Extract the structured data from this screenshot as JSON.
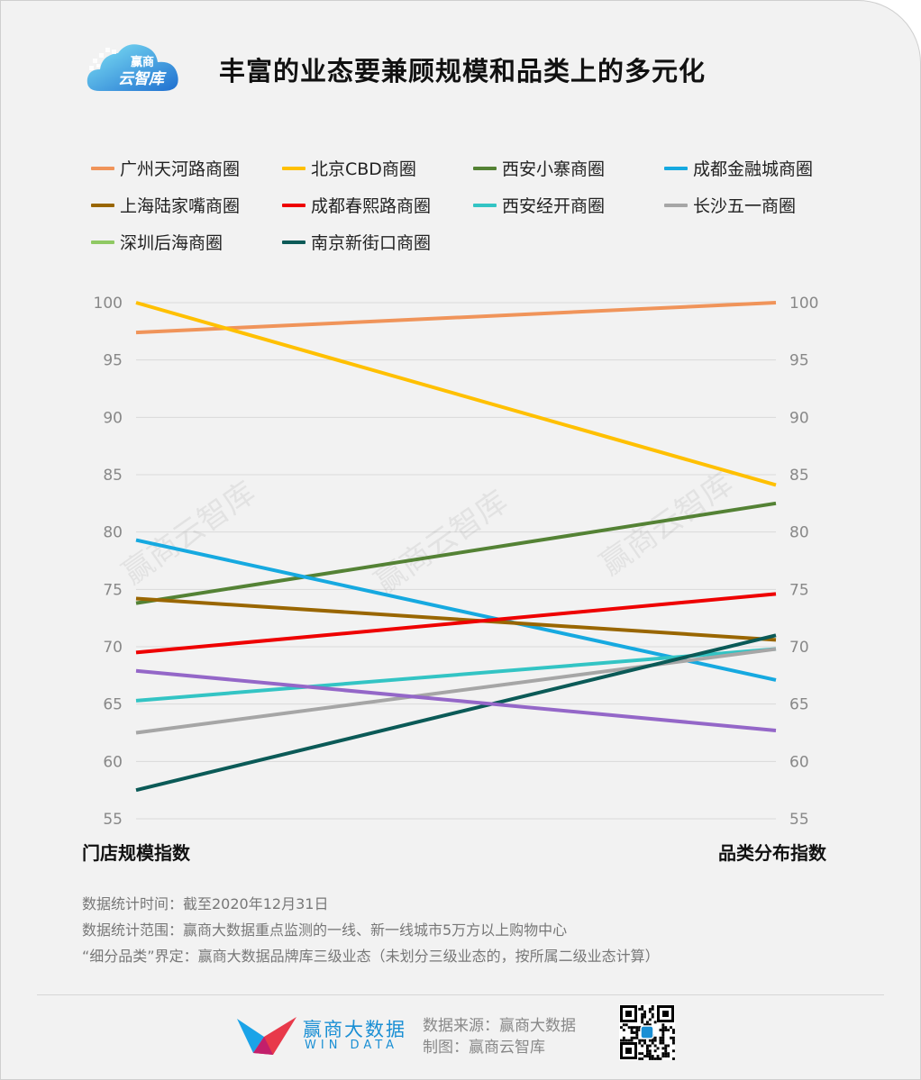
{
  "title": "丰富的业态要兼顾规模和品类上的多元化",
  "logo": {
    "line1": "赢商",
    "line2": "云智库"
  },
  "watermark": "赢商云智库",
  "chart_data": {
    "type": "line",
    "title": "丰富的业态要兼顾规模和品类上的多元化",
    "categories": [
      "门店规模指数",
      "品类分布指数"
    ],
    "ylim": [
      55,
      100
    ],
    "yticks": [
      100,
      95,
      90,
      85,
      80,
      75,
      70,
      65,
      60,
      55
    ],
    "grid": true,
    "legend_position": "top",
    "series": [
      {
        "name": "广州天河路商圈",
        "color": "#f0945a",
        "values": [
          97.4,
          100
        ]
      },
      {
        "name": "北京CBD商圈",
        "color": "#ffc000",
        "values": [
          100,
          84.1
        ]
      },
      {
        "name": "西安小寨商圈",
        "color": "#548235",
        "values": [
          73.8,
          82.5
        ]
      },
      {
        "name": "成都金融城商圈",
        "color": "#16a9e0",
        "values": [
          79.3,
          67.1
        ]
      },
      {
        "name": "上海陆家嘴商圈",
        "color": "#996600",
        "values": [
          74.2,
          70.6
        ]
      },
      {
        "name": "成都春熙路商圈",
        "color": "#ee0000",
        "values": [
          69.5,
          74.6
        ]
      },
      {
        "name": "西安经开商圈",
        "color": "#33c4c4",
        "values": [
          65.3,
          69.8
        ]
      },
      {
        "name": "长沙五一商圈",
        "color": "#a6a6a6",
        "values": [
          62.5,
          69.8
        ]
      },
      {
        "name": "深圳后海商圈",
        "color": "#8fc963",
        "values": [
          null,
          null
        ]
      },
      {
        "name": "南京新街口商圈",
        "color": "#0b5a57",
        "values": [
          57.5,
          71
        ]
      },
      {
        "name": "",
        "color": "#9467c8",
        "values": [
          67.9,
          62.7
        ]
      }
    ]
  },
  "notes": [
    "数据统计时间：截至2020年12月31日",
    "数据统计范围：赢商大数据重点监测的一线、新一线城市5万方以上购物中心",
    "“细分品类”界定：赢商大数据品牌库三级业态（未划分三级业态的，按所属二级业态计算）"
  ],
  "footer": {
    "brand_cn": "赢商大数据",
    "brand_en": "WIN DATA",
    "source": "数据来源：赢商大数据",
    "maker": "制图：赢商云智库"
  }
}
